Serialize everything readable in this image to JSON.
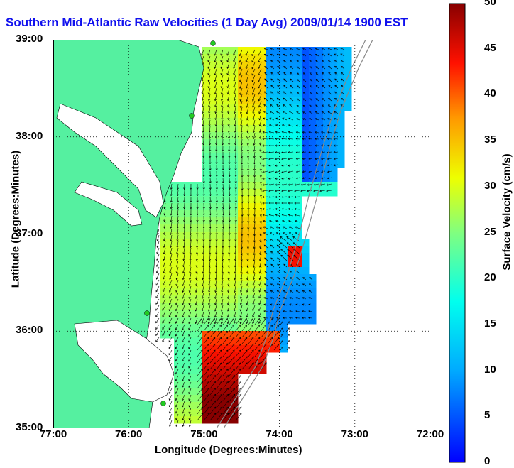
{
  "title": "Southern Mid-Atlantic Raw Velocities (1 Day Avg) 2009/01/14 1900 EST",
  "xlabel": "Longitude (Degrees:Minutes)",
  "ylabel": "Latitude (Degrees:Minutes)",
  "colorbar_label": "Surface Velocity (cm/s)",
  "x_ticks": [
    "77:00",
    "76:00",
    "75:00",
    "74:00",
    "73:00",
    "72:00"
  ],
  "y_ticks": [
    "39:00",
    "38:00",
    "37:00",
    "36:00",
    "35:00"
  ],
  "colorbar_ticks": [
    "0",
    "5",
    "10",
    "15",
    "20",
    "25",
    "30",
    "35",
    "40",
    "45",
    "50"
  ],
  "colors": {
    "land": "#55f0a0",
    "title": "#1010ee",
    "arrow": "#000000",
    "station": "#22cc22"
  },
  "map_data": {
    "lon_range": [
      -77,
      -72
    ],
    "lat_range": [
      35,
      39
    ],
    "colorbar_range": [
      0,
      50
    ],
    "grid": "dotted",
    "colormap": "jet"
  }
}
